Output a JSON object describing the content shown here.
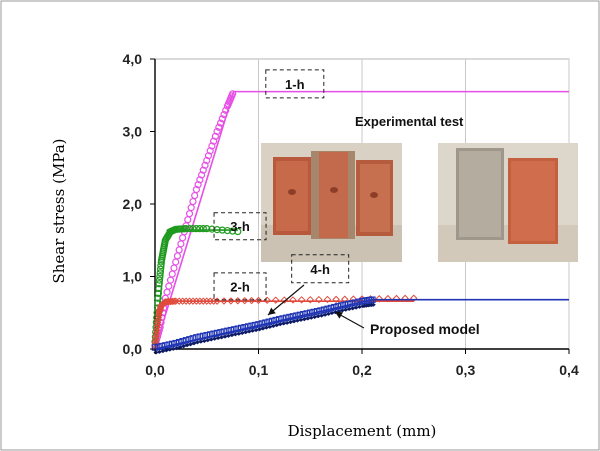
{
  "chart_data": {
    "type": "scatter",
    "xlabel": "Displacement (mm)",
    "ylabel": "Shear stress (MPa)",
    "xlim": [
      0,
      0.4
    ],
    "ylim": [
      0,
      4
    ],
    "x_ticks": [
      "0,0",
      "0,1",
      "0,2",
      "0,3",
      "0,4"
    ],
    "y_ticks": [
      "0,0",
      "1,0",
      "2,0",
      "3,0",
      "4,0"
    ],
    "grid": "vertical",
    "series": [
      {
        "name": "1-h",
        "color": "#e64fe6",
        "marker": "pink-circle",
        "exp_x": [
          0.0,
          0.005,
          0.01,
          0.02,
          0.03,
          0.04,
          0.05,
          0.06,
          0.07,
          0.075
        ],
        "exp_y": [
          0.05,
          0.3,
          0.7,
          1.2,
          1.7,
          2.2,
          2.6,
          3.0,
          3.35,
          3.52
        ],
        "model_x": [
          0.0,
          0.076,
          0.4
        ],
        "model_y": [
          0.0,
          3.55,
          3.55
        ]
      },
      {
        "name": "3-h",
        "color": "#1f9a1f",
        "marker": "green-circle",
        "exp_x": [
          0.0,
          0.002,
          0.004,
          0.006,
          0.008,
          0.01,
          0.015,
          0.02,
          0.03,
          0.05,
          0.08
        ],
        "exp_y": [
          0.1,
          0.5,
          0.9,
          1.2,
          1.35,
          1.5,
          1.62,
          1.65,
          1.66,
          1.66,
          1.62
        ],
        "model_x": [
          0.0,
          0.012,
          0.08
        ],
        "model_y": [
          0.0,
          1.64,
          1.64
        ]
      },
      {
        "name": "2-h",
        "color": "#e04a3c",
        "marker": "red-diamond",
        "exp_x": [
          0.0,
          0.002,
          0.004,
          0.006,
          0.01,
          0.02,
          0.04,
          0.06,
          0.1,
          0.15,
          0.2,
          0.25
        ],
        "exp_y": [
          0.05,
          0.3,
          0.5,
          0.6,
          0.65,
          0.66,
          0.66,
          0.66,
          0.67,
          0.68,
          0.69,
          0.7
        ],
        "model_x": [
          0.0,
          0.008,
          0.25
        ],
        "model_y": [
          0.0,
          0.66,
          0.66
        ]
      },
      {
        "name": "4-h",
        "color": "#1f35b5",
        "marker": "blue-square",
        "exp_x": [
          0.0,
          0.02,
          0.04,
          0.06,
          0.08,
          0.1,
          0.12,
          0.14,
          0.16,
          0.18,
          0.2,
          0.21
        ],
        "exp_y": [
          0.02,
          0.08,
          0.16,
          0.22,
          0.28,
          0.34,
          0.41,
          0.47,
          0.53,
          0.6,
          0.66,
          0.68
        ],
        "model_x": [
          0.0,
          0.21,
          0.4
        ],
        "model_y": [
          0.0,
          0.68,
          0.68
        ]
      }
    ],
    "annotations": [
      {
        "text": "1-h",
        "style": "dashed-box"
      },
      {
        "text": "3-h",
        "style": "dashed-box"
      },
      {
        "text": "2-h",
        "style": "dashed-box"
      },
      {
        "text": "4-h",
        "style": "dashed-box"
      },
      {
        "text": "Experimental test"
      },
      {
        "text": "Proposed model"
      }
    ],
    "model_line_color": "#000000",
    "photos": [
      {
        "name": "brick-specimen-front-photo"
      },
      {
        "name": "brick-specimen-side-photo"
      }
    ]
  }
}
